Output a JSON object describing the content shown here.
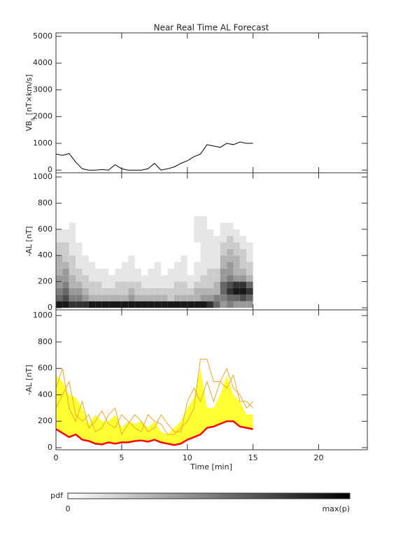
{
  "chart_data": [
    {
      "type": "line",
      "title": "Near Real Time AL Forecast",
      "ylabel": "VB",
      "ylabel_sub": "s",
      "ylabel_unit": "[nT×km/s]",
      "x": [
        0,
        0.5,
        1,
        1.5,
        2,
        2.5,
        3,
        3.5,
        4,
        4.5,
        5,
        5.5,
        6,
        6.5,
        7,
        7.5,
        8,
        8.5,
        9,
        9.5,
        10,
        10.5,
        11,
        11.5,
        12,
        12.5,
        13,
        13.5,
        14,
        14.5,
        15
      ],
      "series": [
        {
          "color": "#000000",
          "values": [
            600,
            550,
            620,
            300,
            50,
            0,
            0,
            20,
            0,
            200,
            50,
            0,
            0,
            0,
            50,
            250,
            0,
            50,
            120,
            250,
            350,
            500,
            600,
            950,
            900,
            850,
            1000,
            950,
            1050,
            1000,
            1000
          ]
        }
      ],
      "ylim": [
        -100,
        5130
      ],
      "yticks": [
        0,
        1000,
        2000,
        3000,
        4000,
        5000
      ]
    },
    {
      "type": "heatmap",
      "ylabel": "-AL [nT]",
      "x_bins": [
        0,
        0.5,
        1,
        1.5,
        2,
        2.5,
        3,
        3.5,
        4,
        4.5,
        5,
        5.5,
        6,
        6.5,
        7,
        7.5,
        8,
        8.5,
        9,
        9.5,
        10,
        10.5,
        11,
        11.5,
        12,
        12.5,
        13,
        13.5,
        14,
        14.5,
        15
      ],
      "y_bins": [
        0,
        50,
        100,
        150,
        200,
        250,
        300,
        350,
        400,
        450,
        500,
        550,
        600,
        650,
        700
      ],
      "z": [
        [
          0.9,
          0.9,
          0.8,
          0.8,
          0.8,
          0.9,
          0.9,
          0.9,
          0.9,
          0.9,
          0.9,
          0.9,
          0.9,
          0.9,
          0.9,
          0.9,
          0.9,
          0.9,
          0.9,
          0.9,
          0.9,
          0.9,
          0.9,
          0.8,
          0.6,
          0.4,
          0.5,
          0.4,
          0.4,
          0.4
        ],
        [
          0.6,
          0.7,
          0.5,
          0.5,
          0.4,
          0.3,
          0.3,
          0.3,
          0.3,
          0.3,
          0.3,
          0.4,
          0.3,
          0.3,
          0.3,
          0.3,
          0.3,
          0.2,
          0.3,
          0.3,
          0.3,
          0.3,
          0.4,
          0.4,
          0.5,
          0.5,
          0.6,
          0.6,
          0.7,
          0.6
        ],
        [
          0.5,
          0.6,
          0.4,
          0.4,
          0.3,
          0.2,
          0.2,
          0.2,
          0.2,
          0.2,
          0.2,
          0.3,
          0.2,
          0.2,
          0.2,
          0.2,
          0.2,
          0.2,
          0.2,
          0.2,
          0.2,
          0.3,
          0.3,
          0.3,
          0.3,
          0.6,
          0.8,
          0.9,
          0.9,
          0.8
        ],
        [
          0.4,
          0.5,
          0.3,
          0.3,
          0.2,
          0.2,
          0.2,
          0.1,
          0.1,
          0.2,
          0.2,
          0.2,
          0.2,
          0.1,
          0.1,
          0.1,
          0.1,
          0.1,
          0.2,
          0.2,
          0.1,
          0.2,
          0.2,
          0.2,
          0.3,
          0.6,
          0.7,
          0.8,
          0.8,
          0.6
        ],
        [
          0.4,
          0.4,
          0.3,
          0.2,
          0.2,
          0.1,
          0.1,
          0.1,
          0.1,
          0.1,
          0.1,
          0.1,
          0.1,
          0.1,
          0.1,
          0.1,
          0.1,
          0.1,
          0.1,
          0.1,
          0.1,
          0.1,
          0.2,
          0.2,
          0.2,
          0.4,
          0.5,
          0.4,
          0.4,
          0.3
        ],
        [
          0.3,
          0.4,
          0.2,
          0.2,
          0.1,
          0.1,
          0.1,
          0.1,
          0,
          0.1,
          0.1,
          0.1,
          0.1,
          0,
          0.1,
          0.1,
          0,
          0.1,
          0.1,
          0.1,
          0,
          0.1,
          0.1,
          0.2,
          0.2,
          0.4,
          0.4,
          0.3,
          0.3,
          0.2
        ],
        [
          0.3,
          0.3,
          0.2,
          0.1,
          0.1,
          0.1,
          0,
          0,
          0,
          0,
          0.1,
          0.1,
          0,
          0,
          0,
          0.1,
          0,
          0,
          0.1,
          0.1,
          0,
          0.1,
          0.1,
          0.1,
          0.1,
          0.3,
          0.4,
          0.3,
          0.2,
          0.2
        ],
        [
          0.3,
          0.2,
          0.2,
          0.1,
          0.1,
          0,
          0,
          0,
          0,
          0,
          0,
          0.1,
          0,
          0,
          0,
          0,
          0,
          0,
          0,
          0.1,
          0,
          0,
          0.1,
          0.1,
          0.1,
          0.3,
          0.3,
          0.3,
          0.2,
          0.1
        ],
        [
          0.2,
          0.2,
          0.1,
          0.1,
          0,
          0,
          0,
          0,
          0,
          0,
          0,
          0,
          0,
          0,
          0,
          0,
          0,
          0,
          0,
          0,
          0,
          0,
          0.1,
          0.1,
          0.1,
          0.2,
          0.3,
          0.2,
          0.2,
          0.1
        ],
        [
          0.2,
          0.2,
          0.1,
          0.1,
          0,
          0,
          0,
          0,
          0,
          0,
          0,
          0,
          0,
          0,
          0,
          0,
          0,
          0,
          0,
          0,
          0,
          0,
          0.1,
          0.1,
          0.1,
          0.2,
          0.2,
          0.2,
          0.1,
          0.1
        ],
        [
          0.1,
          0.1,
          0.1,
          0,
          0,
          0,
          0,
          0,
          0,
          0,
          0,
          0,
          0,
          0,
          0,
          0,
          0,
          0,
          0,
          0,
          0,
          0.1,
          0.1,
          0.1,
          0.1,
          0.1,
          0.2,
          0.1,
          0.1,
          0
        ],
        [
          0.1,
          0.1,
          0.1,
          0,
          0,
          0,
          0,
          0,
          0,
          0,
          0,
          0,
          0,
          0,
          0,
          0,
          0,
          0,
          0,
          0,
          0,
          0.1,
          0.1,
          0.1,
          0,
          0.1,
          0.1,
          0.1,
          0,
          0
        ],
        [
          0,
          0,
          0.1,
          0,
          0,
          0,
          0,
          0,
          0,
          0,
          0,
          0,
          0,
          0,
          0,
          0,
          0,
          0,
          0,
          0,
          0,
          0.1,
          0.1,
          0,
          0,
          0.1,
          0.1,
          0,
          0,
          0
        ],
        [
          0,
          0,
          0,
          0,
          0,
          0,
          0,
          0,
          0,
          0,
          0,
          0,
          0,
          0,
          0,
          0,
          0,
          0,
          0,
          0,
          0,
          0.1,
          0.1,
          0,
          0,
          0,
          0,
          0,
          0,
          0
        ]
      ],
      "ylim": [
        -16,
        1032
      ],
      "yticks": [
        0,
        200,
        400,
        600,
        800,
        1000
      ],
      "colorbar": {
        "label": "pdf",
        "min_label": "0",
        "max_label": "max(p)"
      }
    },
    {
      "type": "line",
      "ylabel": "-AL [nT]",
      "xlabel": "Time [min]",
      "x": [
        0,
        0.5,
        1,
        1.5,
        2,
        2.5,
        3,
        3.5,
        4,
        4.5,
        5,
        5.5,
        6,
        6.5,
        7,
        7.5,
        8,
        8.5,
        9,
        9.5,
        10,
        10.5,
        11,
        11.5,
        12,
        12.5,
        13,
        13.5,
        14,
        14.5,
        15
      ],
      "band": {
        "color": "#ffff33",
        "values": [
          550,
          500,
          400,
          380,
          300,
          180,
          250,
          200,
          200,
          250,
          150,
          200,
          180,
          200,
          150,
          200,
          120,
          100,
          150,
          200,
          300,
          380,
          600,
          300,
          300,
          400,
          550,
          400,
          350,
          250,
          250
        ]
      },
      "series": [
        {
          "color": "#f5a623",
          "values": [
            450,
            600,
            300,
            200,
            350,
            150,
            200,
            280,
            180,
            150,
            250,
            200,
            150,
            120,
            250,
            200,
            180,
            100,
            100,
            150,
            200,
            300,
            670,
            670,
            500,
            500,
            600,
            450,
            400,
            300,
            350
          ]
        },
        {
          "color": "#f5a623",
          "values": [
            300,
            400,
            500,
            250,
            200,
            250,
            120,
            150,
            250,
            300,
            100,
            180,
            250,
            200,
            120,
            150,
            250,
            180,
            120,
            120,
            350,
            450,
            350,
            500,
            350,
            500,
            450,
            550,
            350,
            350,
            300
          ]
        },
        {
          "color": "#ff0000",
          "values": [
            140,
            110,
            80,
            100,
            60,
            50,
            30,
            25,
            40,
            30,
            40,
            40,
            50,
            55,
            45,
            60,
            40,
            30,
            20,
            30,
            60,
            80,
            100,
            150,
            160,
            180,
            200,
            200,
            160,
            150,
            140
          ]
        }
      ],
      "xlim": [
        0,
        23.7
      ],
      "xticks": [
        0,
        5,
        10,
        15,
        20
      ],
      "ylim": [
        -16,
        1043
      ],
      "yticks": [
        0,
        200,
        400,
        600,
        800,
        1000
      ]
    }
  ]
}
